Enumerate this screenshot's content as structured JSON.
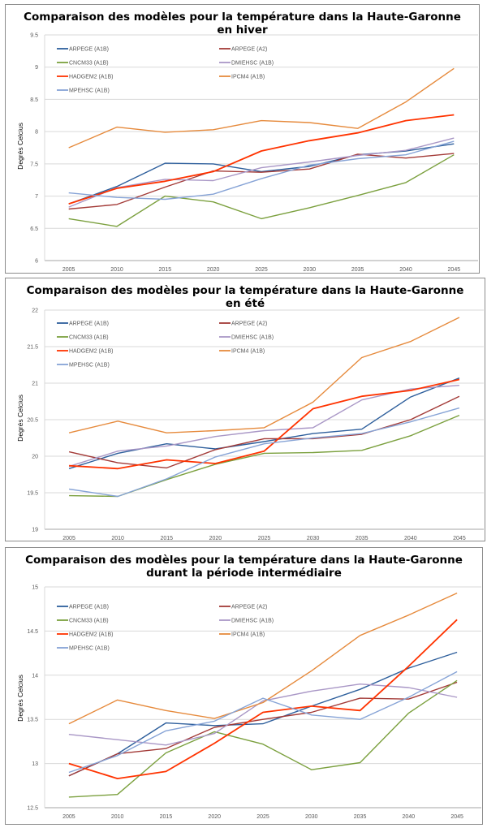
{
  "chart_data": [
    {
      "type": "line",
      "title": "Comparaison des modèles pour la température  dans la Haute-Garonne",
      "subtitle": "en hiver",
      "xlabel": "",
      "ylabel": "Degrés Celcius",
      "x": [
        "2005",
        "2010",
        "2015",
        "2020",
        "2025",
        "2030",
        "2035",
        "2040",
        "2045"
      ],
      "ylim": [
        6,
        9.5
      ],
      "yticks": [
        "6",
        "6.5",
        "7",
        "7.5",
        "8",
        "8.5",
        "9",
        "9.5"
      ],
      "grid": true,
      "legend_position": "top-left",
      "series": [
        {
          "name": "ARPEGE (A1B)",
          "color": "#2e5f9c",
          "values": [
            6.88,
            7.15,
            7.51,
            7.5,
            7.38,
            7.46,
            7.64,
            7.7,
            7.81
          ]
        },
        {
          "name": "ARPEGE (A2)",
          "color": "#a33a37",
          "values": [
            6.8,
            6.87,
            7.14,
            7.39,
            7.37,
            7.42,
            7.65,
            7.59,
            7.66
          ]
        },
        {
          "name": "CNCM33 (A1B)",
          "color": "#7ba03e",
          "values": [
            6.65,
            6.53,
            7.0,
            6.91,
            6.65,
            6.82,
            7.01,
            7.21,
            7.64
          ]
        },
        {
          "name": "DMIEHSC (A1B)",
          "color": "#a997c6",
          "values": [
            6.83,
            7.13,
            7.26,
            7.24,
            7.44,
            7.53,
            7.63,
            7.71,
            7.9
          ]
        },
        {
          "name": "HADGEM2 (A1B)",
          "color": "#ff3300",
          "values": [
            6.88,
            7.12,
            7.23,
            7.38,
            7.7,
            7.86,
            7.98,
            8.17,
            8.26
          ]
        },
        {
          "name": "IPCM4 (A1B)",
          "color": "#e68a3c",
          "values": [
            7.75,
            8.07,
            7.99,
            8.03,
            8.17,
            8.14,
            8.05,
            8.46,
            8.98
          ]
        },
        {
          "name": "MPEHSC (A1B)",
          "color": "#86a3d6",
          "values": [
            7.05,
            6.98,
            6.95,
            7.03,
            7.27,
            7.48,
            7.58,
            7.64,
            7.85
          ]
        }
      ]
    },
    {
      "type": "line",
      "title": "Comparaison des modèles pour la température  dans la Haute-Garonne",
      "subtitle": "en été",
      "xlabel": "",
      "ylabel": "Degrés Celcius",
      "x": [
        "2005",
        "2010",
        "2015",
        "2020",
        "2025",
        "2030",
        "2035",
        "2040",
        "2045"
      ],
      "ylim": [
        19,
        22
      ],
      "yticks": [
        "19",
        "19.5",
        "20",
        "20.5",
        "21",
        "21.5",
        "22"
      ],
      "grid": true,
      "legend_position": "top-left",
      "series": [
        {
          "name": "ARPEGE (A1B)",
          "color": "#2e5f9c",
          "values": [
            19.83,
            20.04,
            20.17,
            20.1,
            20.2,
            20.31,
            20.37,
            20.81,
            21.07
          ]
        },
        {
          "name": "ARPEGE (A2)",
          "color": "#a33a37",
          "values": [
            20.06,
            19.91,
            19.84,
            20.09,
            20.24,
            20.24,
            20.3,
            20.5,
            20.82
          ]
        },
        {
          "name": "CNCM33 (A1B)",
          "color": "#7ba03e",
          "values": [
            19.46,
            19.45,
            19.68,
            19.89,
            20.04,
            20.05,
            20.08,
            20.28,
            20.56
          ]
        },
        {
          "name": "DMIEHSC (A1B)",
          "color": "#a997c6",
          "values": [
            19.86,
            20.07,
            20.14,
            20.27,
            20.35,
            20.39,
            20.77,
            20.92,
            20.97
          ]
        },
        {
          "name": "HADGEM2 (A1B)",
          "color": "#ff3300",
          "values": [
            19.87,
            19.83,
            19.95,
            19.9,
            20.07,
            20.65,
            20.82,
            20.9,
            21.05
          ]
        },
        {
          "name": "IPCM4 (A1B)",
          "color": "#e68a3c",
          "values": [
            20.32,
            20.48,
            20.32,
            20.35,
            20.39,
            20.74,
            21.35,
            21.57,
            21.9
          ]
        },
        {
          "name": "MPEHSC (A1B)",
          "color": "#86a3d6",
          "values": [
            19.55,
            19.45,
            19.69,
            19.99,
            20.17,
            20.25,
            20.31,
            20.47,
            20.66
          ]
        }
      ]
    },
    {
      "type": "line",
      "title": "Comparaison des modèles pour la température  dans la Haute-Garonne",
      "subtitle": "durant la période intermédiaire",
      "xlabel": "",
      "ylabel": "Degrés Celcius",
      "x": [
        "2005",
        "2010",
        "2015",
        "2020",
        "2025",
        "2030",
        "2035",
        "2040",
        "2045"
      ],
      "ylim": [
        12.5,
        15
      ],
      "yticks": [
        "12.5",
        "13",
        "13.5",
        "14",
        "14.5",
        "15"
      ],
      "grid": true,
      "legend_position": "top-left",
      "series": [
        {
          "name": "ARPEGE (A1B)",
          "color": "#2e5f9c",
          "values": [
            12.86,
            13.11,
            13.46,
            13.43,
            13.45,
            13.65,
            13.84,
            14.08,
            14.26
          ]
        },
        {
          "name": "ARPEGE (A2)",
          "color": "#a33a37",
          "values": [
            12.86,
            13.11,
            13.17,
            13.41,
            13.5,
            13.58,
            13.74,
            13.73,
            13.92
          ]
        },
        {
          "name": "CNCM33 (A1B)",
          "color": "#7ba03e",
          "values": [
            12.62,
            12.65,
            13.12,
            13.36,
            13.22,
            12.93,
            13.01,
            13.57,
            13.94
          ]
        },
        {
          "name": "DMIEHSC (A1B)",
          "color": "#a997c6",
          "values": [
            13.33,
            13.27,
            13.21,
            13.34,
            13.71,
            13.82,
            13.9,
            13.86,
            13.75
          ]
        },
        {
          "name": "HADGEM2 (A1B)",
          "color": "#ff3300",
          "values": [
            13.0,
            12.83,
            12.91,
            13.23,
            13.58,
            13.65,
            13.6,
            14.1,
            14.63
          ]
        },
        {
          "name": "IPCM4 (A1B)",
          "color": "#e68a3c",
          "values": [
            13.45,
            13.72,
            13.6,
            13.51,
            13.69,
            14.05,
            14.45,
            14.68,
            14.93
          ]
        },
        {
          "name": "MPEHSC (A1B)",
          "color": "#86a3d6",
          "values": [
            12.9,
            13.09,
            13.37,
            13.48,
            13.74,
            13.55,
            13.5,
            13.75,
            14.04
          ]
        }
      ]
    }
  ]
}
